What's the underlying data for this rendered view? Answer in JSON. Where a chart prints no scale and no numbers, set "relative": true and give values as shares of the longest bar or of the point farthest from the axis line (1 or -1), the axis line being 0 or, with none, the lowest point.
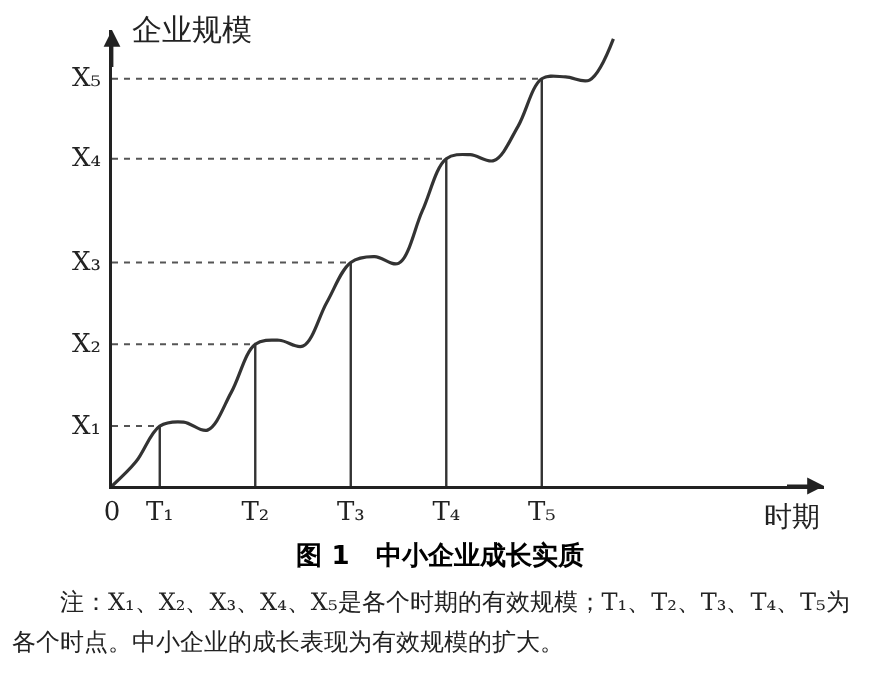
{
  "chart_data": {
    "type": "line",
    "title": "图 1　中小企业成长实质",
    "xlabel": "时期",
    "ylabel": "企业规模",
    "annotations": [
      "注：X₁、X₂、X₃、X₄、X₅是各个时期的有效规模；T₁、T₂、T₃、T₄、T₅为各个时点。中小企业的成长表现为有效规模的扩大。"
    ],
    "relative": true,
    "categories": [
      "0",
      null,
      "T₁",
      null,
      null,
      null,
      "T₂",
      null,
      null,
      null,
      "T₃",
      null,
      null,
      null,
      "T₄",
      null,
      null,
      null,
      "T₅",
      null,
      null,
      null
    ],
    "series": [
      {
        "color": "#333333",
        "values": [
          0,
          0.054,
          0.134,
          0.143,
          0.125,
          0.21,
          0.317,
          0.326,
          0.313,
          0.411,
          0.5,
          0.513,
          0.498,
          0.616,
          0.732,
          0.741,
          0.728,
          0.804,
          0.911,
          0.915,
          0.908,
          1
        ]
      }
    ],
    "ref_lines": [
      {
        "axis": "y",
        "value": 0.134,
        "label": "X₁",
        "line_style": "dotted"
      },
      {
        "axis": "y",
        "value": 0.317,
        "label": "X₂",
        "line_style": "dotted"
      },
      {
        "axis": "y",
        "value": 0.5,
        "label": "X₃",
        "line_style": "dotted"
      },
      {
        "axis": "y",
        "value": 0.732,
        "label": "X₄",
        "line_style": "dotted"
      },
      {
        "axis": "y",
        "value": 0.911,
        "label": "X₅",
        "line_style": "dotted"
      },
      {
        "axis": "x",
        "value": "T₁"
      },
      {
        "axis": "x",
        "value": "T₂"
      },
      {
        "axis": "x",
        "value": "T₃"
      },
      {
        "axis": "x",
        "value": "T₄"
      },
      {
        "axis": "x",
        "value": "T₅"
      }
    ],
    "grid": false,
    "legend": false,
    "marker": "none",
    "line_style": "solid"
  }
}
